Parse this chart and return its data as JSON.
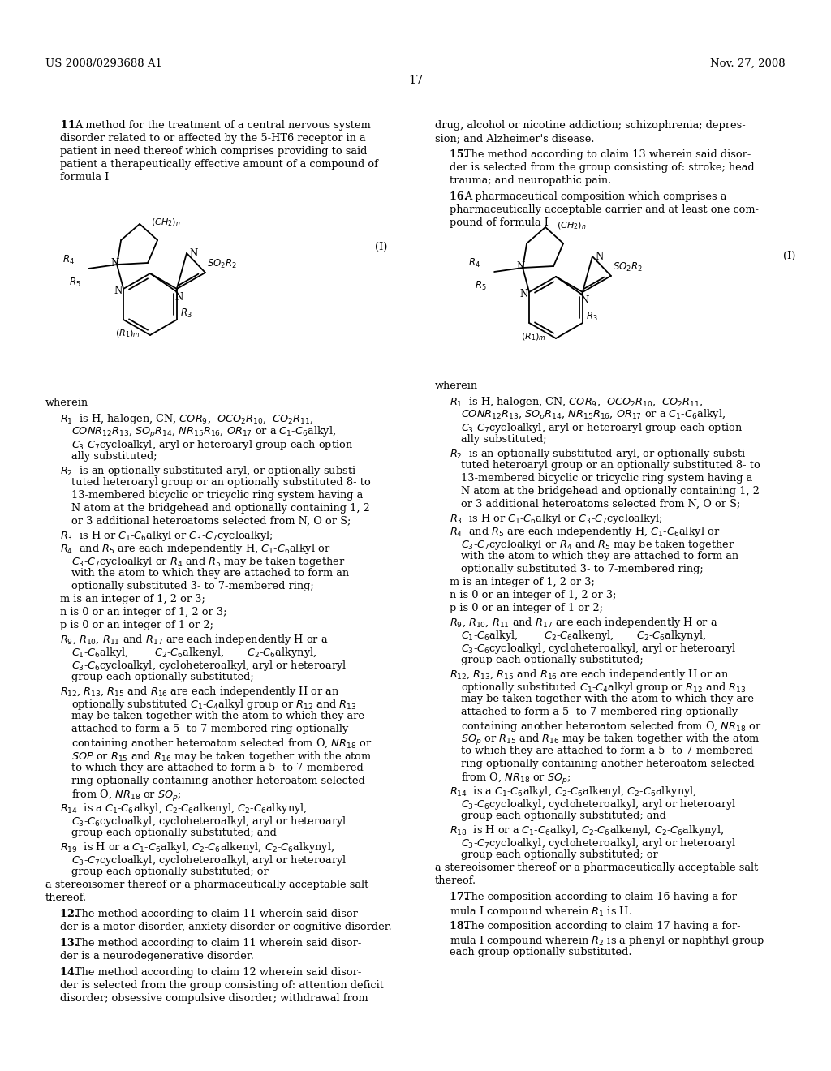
{
  "background": "#ffffff",
  "header_left": "US 2008/0293688 A1",
  "header_right": "Nov. 27, 2008",
  "page_number": "17"
}
